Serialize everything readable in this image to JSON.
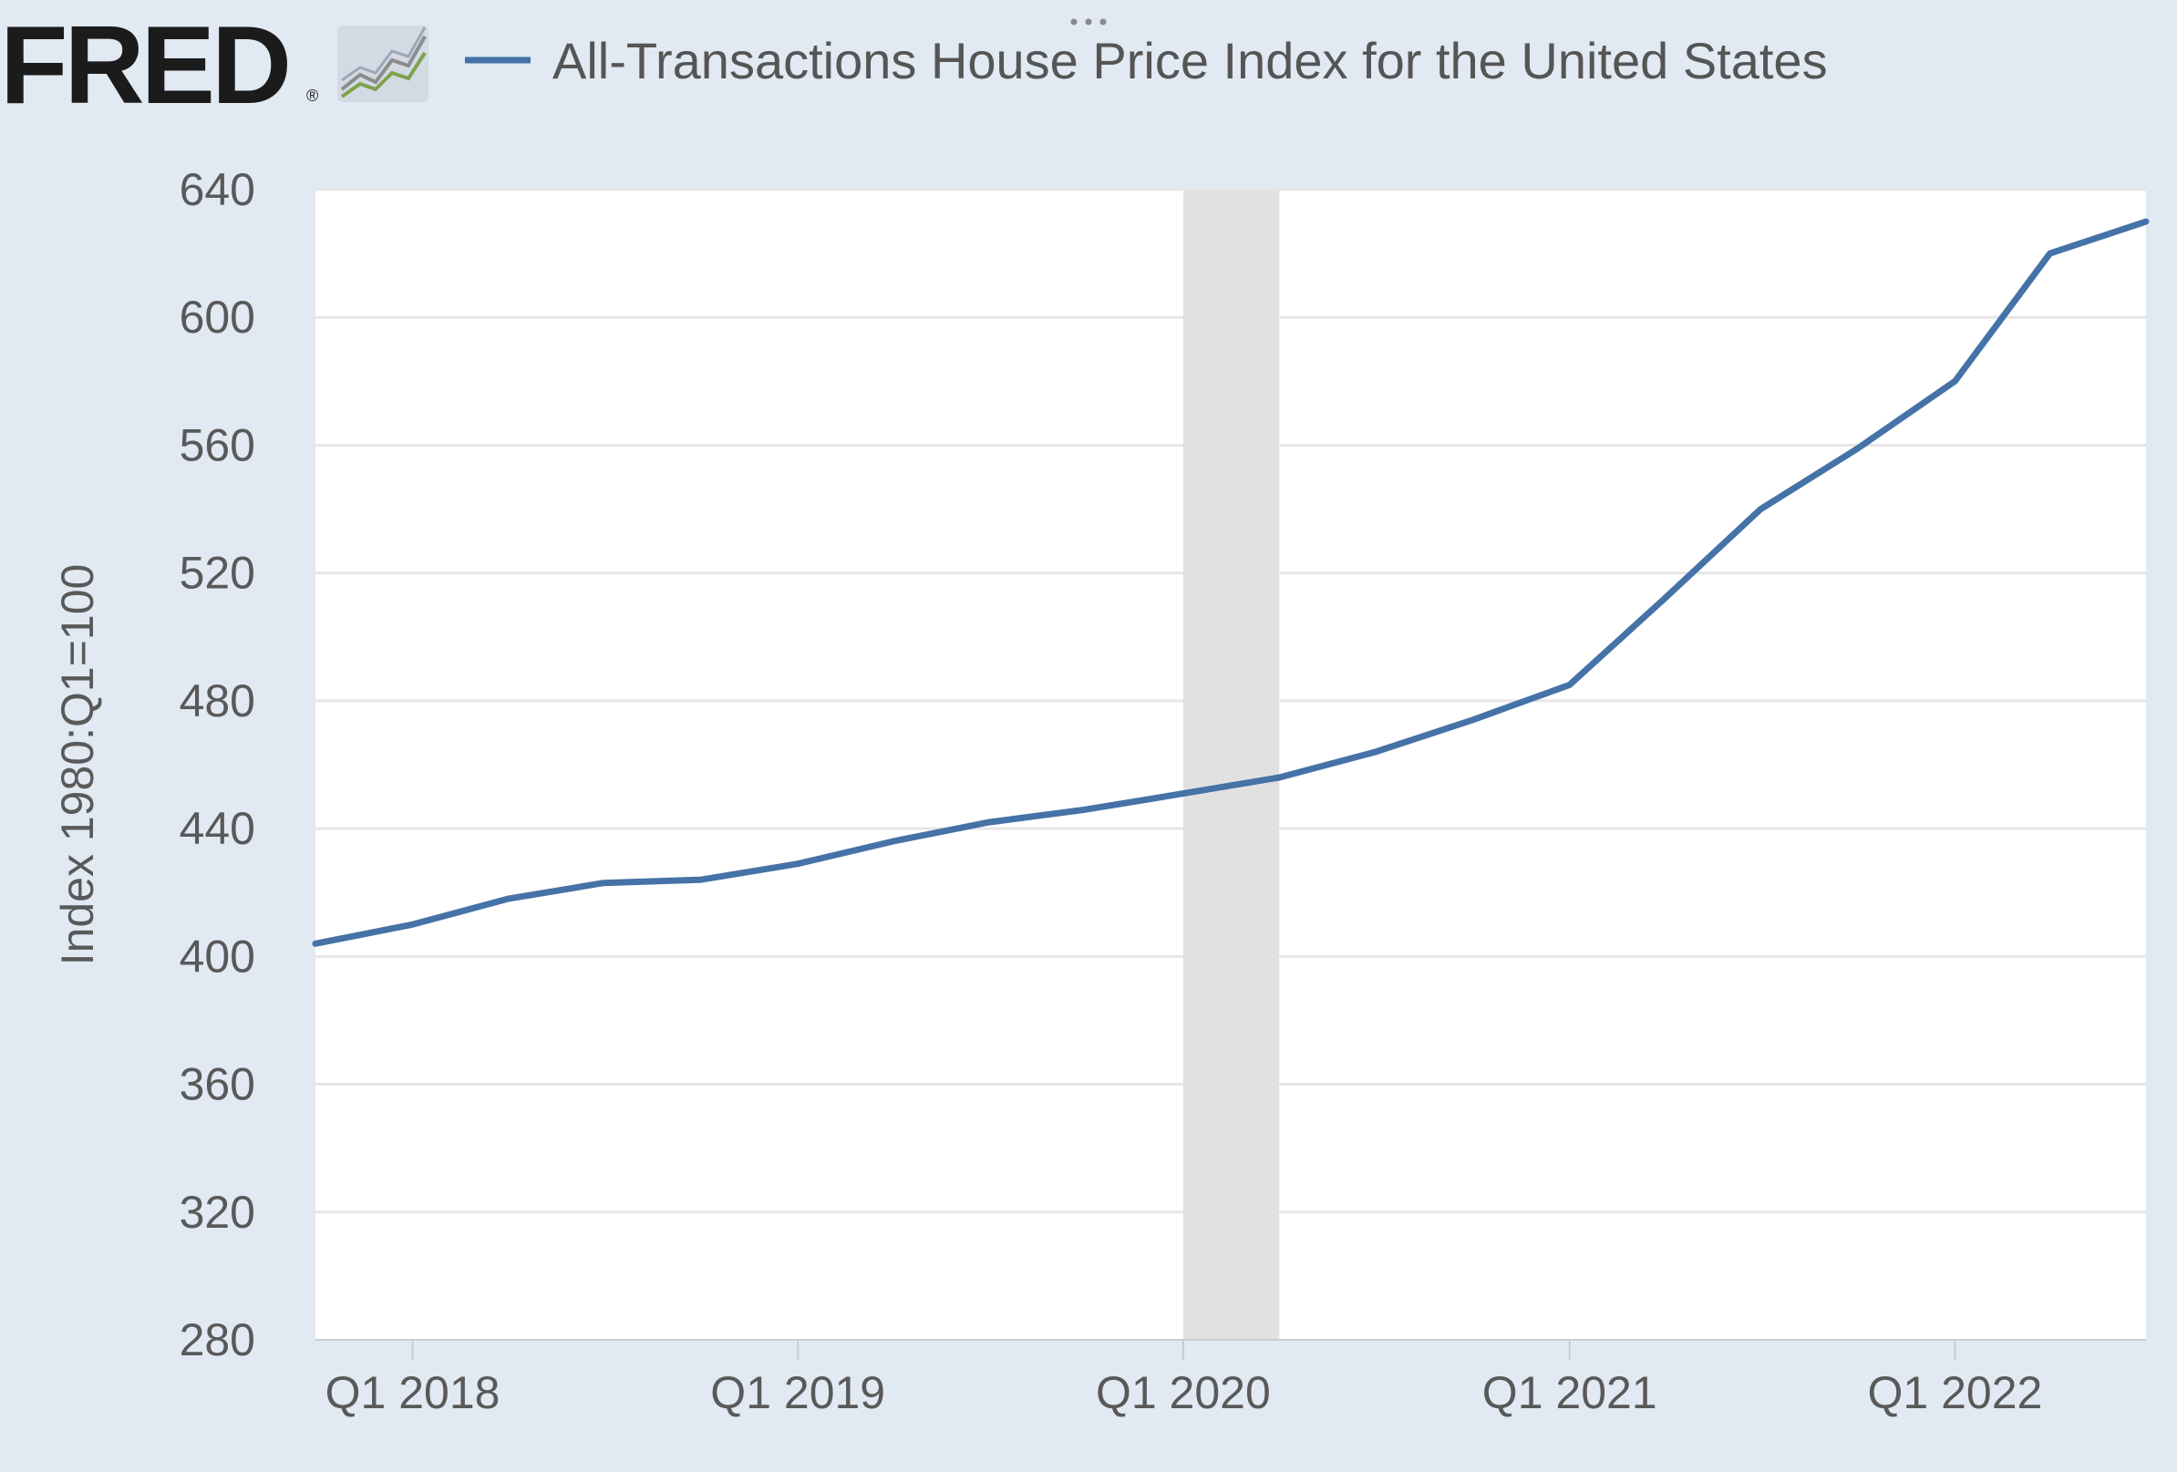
{
  "brand": {
    "name": "FRED",
    "trademark": "®",
    "logo_icon": "trend-line-chart-icon"
  },
  "legend": {
    "series_label": "All-Transactions House Price Index for the United States",
    "menu_icon": "more-dots-icon"
  },
  "colors": {
    "series": "#4572a7",
    "recession": "#e1e1e1",
    "plot_bg": "#ffffff",
    "frame_bg": "#e1e9f2",
    "grid": "#e6e6e6"
  },
  "chart_data": {
    "type": "line",
    "title": "All-Transactions House Price Index for the United States",
    "xlabel": "",
    "ylabel": "Index 1980:Q1=100",
    "ylim": [
      280,
      640
    ],
    "yticks": [
      280,
      320,
      360,
      400,
      440,
      480,
      520,
      560,
      600,
      640
    ],
    "xticks": [
      "Q1 2018",
      "Q1 2019",
      "Q1 2020",
      "Q1 2021",
      "Q1 2022"
    ],
    "xlim": [
      "2017-10-01",
      "2022-07-01"
    ],
    "grid": true,
    "legend_position": "top",
    "recession_shading": [
      {
        "start": "2020-01-01",
        "end": "2020-04-01"
      }
    ],
    "series": [
      {
        "name": "All-Transactions House Price Index for the United States",
        "x": [
          "2017-10-01",
          "2018-01-01",
          "2018-04-01",
          "2018-07-01",
          "2018-10-01",
          "2019-01-01",
          "2019-04-01",
          "2019-07-01",
          "2019-10-01",
          "2020-01-01",
          "2020-04-01",
          "2020-07-01",
          "2020-10-01",
          "2021-01-01",
          "2021-04-01",
          "2021-07-01",
          "2021-10-01",
          "2022-01-01",
          "2022-04-01",
          "2022-07-01"
        ],
        "values": [
          404,
          410,
          418,
          423,
          424,
          429,
          436,
          442,
          446,
          451,
          456,
          464,
          474,
          485,
          512,
          540,
          559,
          580,
          620,
          630
        ]
      }
    ]
  }
}
